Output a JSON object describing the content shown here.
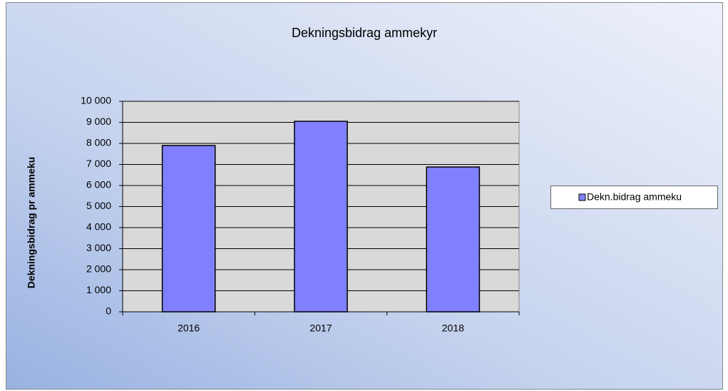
{
  "chart_data": {
    "type": "bar",
    "title": "Dekningsbidrag ammekyr",
    "y_label": "Dekningsbidrag pr ammeku",
    "categories": [
      "2016",
      "2017",
      "2018"
    ],
    "series": [
      {
        "name": "Dekn.bidrag ammeku",
        "color": "#8080ff",
        "values": [
          7900,
          9050,
          6880
        ]
      }
    ],
    "ylim": [
      0,
      10000
    ],
    "yticks": [
      0,
      {
        "value": 1000,
        "label": "1 000"
      },
      {
        "value": 2000,
        "label": "2 000"
      },
      {
        "value": 3000,
        "label": "3 000"
      },
      {
        "value": 4000,
        "label": "4 000"
      },
      {
        "value": 5000,
        "label": "5 000"
      },
      {
        "value": 6000,
        "label": "6 000"
      },
      {
        "value": 7000,
        "label": "7 000"
      },
      {
        "value": 8000,
        "label": "8 000"
      },
      {
        "value": 9000,
        "label": "9 000"
      },
      {
        "value": 10000,
        "label": "10 000"
      }
    ],
    "grid": true,
    "legend": "right"
  }
}
